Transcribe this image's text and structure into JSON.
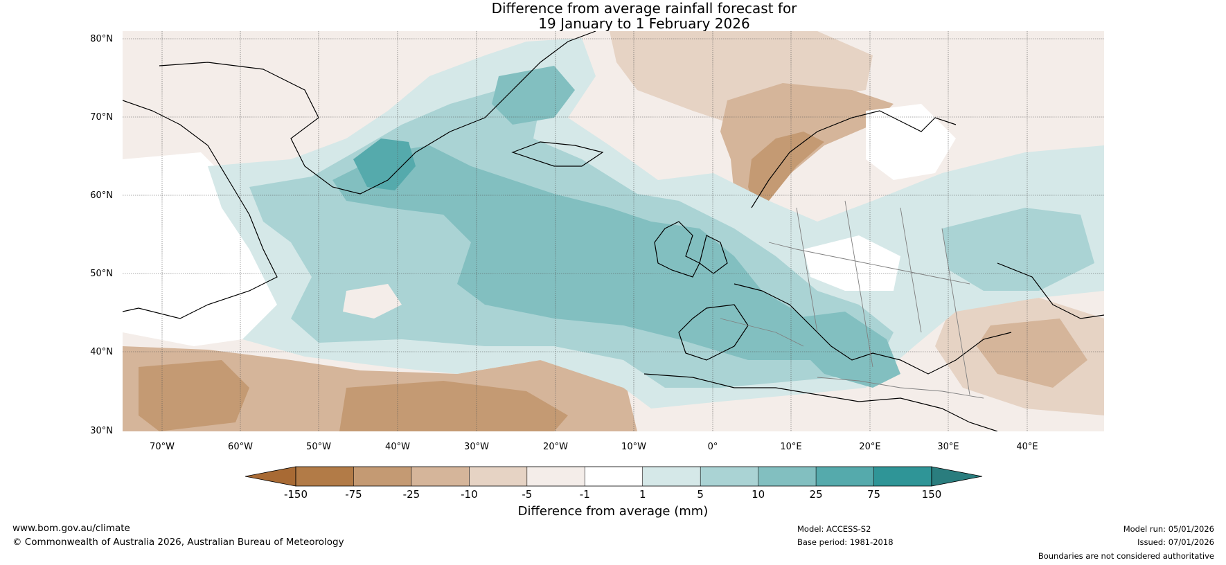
{
  "title": {
    "line1": "Difference from average rainfall forecast for",
    "line2": "19 January to 1 February 2026"
  },
  "map": {
    "lat_labels": [
      "80°N",
      "70°N",
      "60°N",
      "50°N",
      "40°N",
      "30°N"
    ],
    "lon_labels": [
      "70°W",
      "60°W",
      "50°W",
      "40°W",
      "30°W",
      "20°W",
      "10°W",
      "0°",
      "10°E",
      "20°E",
      "30°E",
      "40°E"
    ]
  },
  "colorbar": {
    "title": "Difference from average (mm)",
    "tick_labels": [
      "-150",
      "-75",
      "-25",
      "-10",
      "-5",
      "-1",
      "1",
      "5",
      "10",
      "25",
      "75",
      "150"
    ],
    "colors": [
      "#a86a34",
      "#b27b47",
      "#c49a73",
      "#d5b59a",
      "#e6d3c4",
      "#f4ede9",
      "#ffffff",
      "#d5e8e8",
      "#aad3d4",
      "#82bfc0",
      "#55aaac",
      "#2f9597",
      "#2a7d7e"
    ]
  },
  "footer": {
    "website": "www.bom.gov.au/climate",
    "copyright": "© Commonwealth of Australia 2026, Australian Bureau of Meteorology",
    "model": "Model: ACCESS-S2",
    "base_period": "Base period: 1981-2018",
    "model_run": "Model run: 05/01/2026",
    "issued": "Issued: 07/01/2026",
    "disclaimer": "Boundaries are not considered authoritative"
  }
}
